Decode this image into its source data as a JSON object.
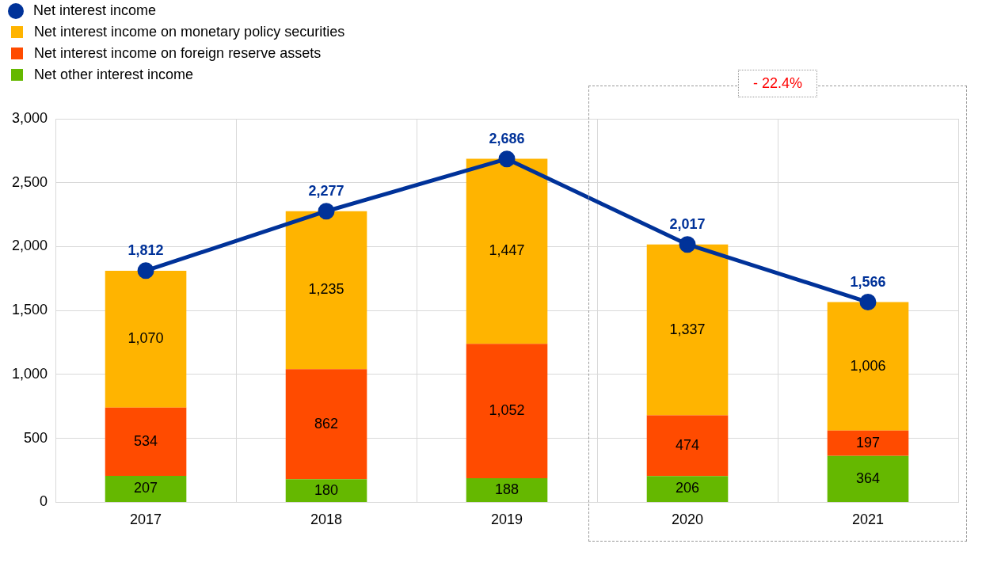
{
  "chart_data": {
    "type": "bar",
    "stacked": true,
    "categories": [
      "2017",
      "2018",
      "2019",
      "2020",
      "2021"
    ],
    "series": [
      {
        "name": "Net interest income",
        "type": "line",
        "color": "#003299",
        "values": [
          1812,
          2277,
          2686,
          2017,
          1566
        ],
        "value_labels": [
          "1,812",
          "2,277",
          "2,686",
          "2,017",
          "1,566"
        ],
        "marker": "circle"
      },
      {
        "name": "Net other interest income",
        "color": "#65b800",
        "values": [
          207,
          180,
          188,
          206,
          364
        ],
        "value_labels": [
          "207",
          "180",
          "188",
          "206",
          "364"
        ]
      },
      {
        "name": "Net interest income on foreign reserve assets",
        "color": "#ff4b00",
        "values": [
          534,
          862,
          1052,
          474,
          197
        ],
        "value_labels": [
          "534",
          "862",
          "1,052",
          "474",
          "197"
        ]
      },
      {
        "name": "Net interest income on monetary policy securities",
        "color": "#ffb400",
        "values": [
          1070,
          1235,
          1447,
          1337,
          1006
        ],
        "value_labels": [
          "1,070",
          "1,235",
          "1,447",
          "1,337",
          "1,006"
        ]
      }
    ],
    "ylim": [
      0,
      3000
    ],
    "yticks": [
      0,
      500,
      {
        "value": 1000,
        "label": "1,000"
      },
      {
        "value": 1500,
        "label": "1,500"
      },
      {
        "value": 2000,
        "label": "2,000"
      },
      {
        "value": 2500,
        "label": "2,500"
      },
      {
        "value": 3000,
        "label": "3,000"
      }
    ],
    "grid": true,
    "legend": "top left",
    "annotations": [
      "- 22.4%"
    ]
  }
}
